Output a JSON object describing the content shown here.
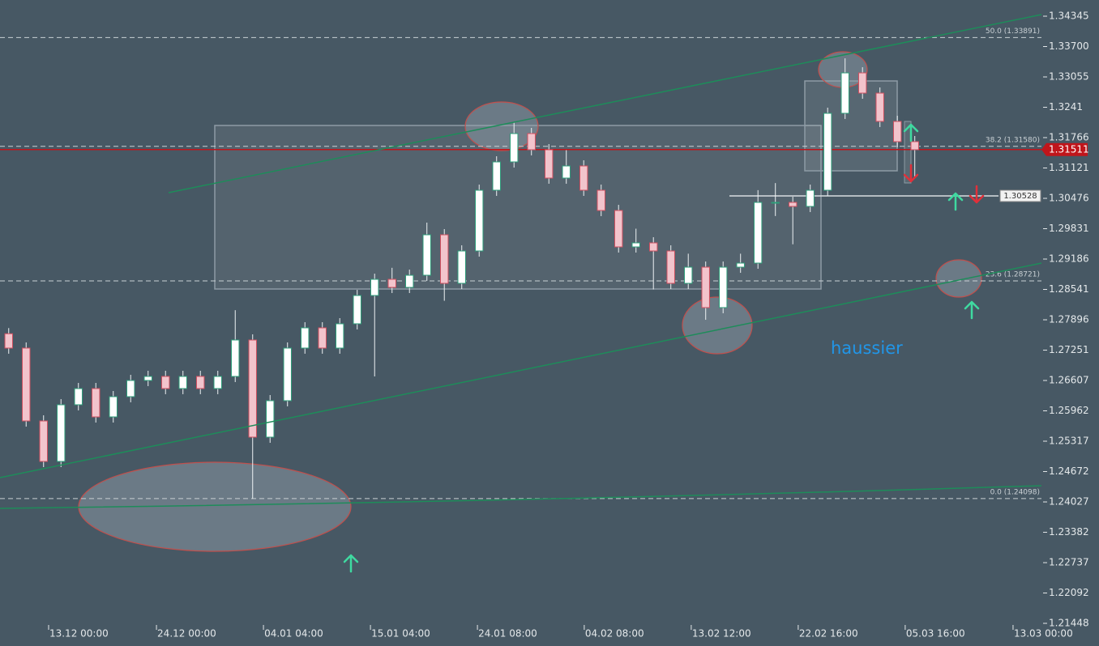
{
  "chart_data": {
    "type": "candlestick",
    "ylim": [
      1.21448,
      1.34689
    ],
    "yticks": [
      1.34345,
      {
        "value": 1.337,
        "label": "1.33700"
      },
      1.33055,
      1.3241,
      1.31766,
      1.31121,
      1.30476,
      1.29831,
      1.29186,
      1.28541,
      1.27896,
      1.27251,
      1.26607,
      1.25962,
      1.25317,
      1.24672,
      1.24027,
      1.23382,
      1.22737,
      1.22092,
      1.21448
    ],
    "xlim": [
      0,
      59.77
    ],
    "xticks": [
      {
        "value": 2.79,
        "label": "13.12 00:00"
      },
      {
        "value": 8.98,
        "label": "24.12 00:00"
      },
      {
        "value": 15.12,
        "label": "04.01 04:00"
      },
      {
        "value": 21.26,
        "label": "15.01 04:00"
      },
      {
        "value": 27.4,
        "label": "24.01 08:00"
      },
      {
        "value": 33.53,
        "label": "04.02 08:00"
      },
      {
        "value": 39.67,
        "label": "13.02 12:00"
      },
      {
        "value": 45.81,
        "label": "22.02 16:00"
      },
      {
        "value": 51.95,
        "label": "05.03 16:00"
      },
      {
        "value": 58.14,
        "label": "13.03 00:00"
      }
    ],
    "candles": {
      "open": [
        1.276,
        1.27295,
        1.25747,
        1.24887,
        1.26091,
        1.26435,
        1.25833,
        1.26263,
        1.26607,
        1.26693,
        1.26435,
        1.26693,
        1.26435,
        1.26693,
        1.27467,
        1.25403,
        1.26177,
        1.27295,
        1.27725,
        1.27295,
        1.27811,
        1.28412,
        1.28756,
        1.28584,
        1.28842,
        1.29702,
        1.2867,
        1.29358,
        1.30648,
        1.3125,
        1.31852,
        1.31508,
        1.30906,
        1.31164,
        1.30648,
        1.30218,
        1.29444,
        1.2953,
        1.29358,
        1.2867,
        1.29014,
        1.28155,
        1.29014,
        1.291,
        1.3039,
        1.3039,
        1.30304,
        1.30648,
        1.32282,
        1.33141,
        1.32711,
        1.3211,
        1.3168
      ],
      "high": [
        1.2772,
        1.27415,
        1.25867,
        1.26211,
        1.26555,
        1.26555,
        1.26383,
        1.26727,
        1.26813,
        1.26813,
        1.26813,
        1.26813,
        1.26813,
        1.281,
        1.27587,
        1.26297,
        1.27415,
        1.27845,
        1.27845,
        1.27931,
        1.28532,
        1.28876,
        1.29,
        1.28962,
        1.2996,
        1.29822,
        1.29478,
        1.30768,
        1.3137,
        1.321,
        1.31972,
        1.31628,
        1.315,
        1.31284,
        1.30768,
        1.30338,
        1.29831,
        1.2965,
        1.29478,
        1.293,
        1.29134,
        1.29134,
        1.293,
        1.3065,
        1.308,
        1.3051,
        1.30768,
        1.32402,
        1.3345,
        1.33261,
        1.32831,
        1.3223,
        1.318
      ],
      "low": [
        1.27175,
        1.25627,
        1.24767,
        1.24767,
        1.25971,
        1.25713,
        1.25713,
        1.26143,
        1.26487,
        1.26315,
        1.26315,
        1.26315,
        1.26315,
        1.26573,
        1.24098,
        1.25283,
        1.26057,
        1.27175,
        1.27175,
        1.27175,
        1.27691,
        1.26693,
        1.28464,
        1.28464,
        1.28722,
        1.283,
        1.2855,
        1.29238,
        1.30528,
        1.3113,
        1.31388,
        1.30786,
        1.30786,
        1.30528,
        1.30098,
        1.29324,
        1.29324,
        1.28541,
        1.2855,
        1.2855,
        1.27896,
        1.28035,
        1.28894,
        1.2898,
        1.301,
        1.295,
        1.30184,
        1.30528,
        1.32162,
        1.32591,
        1.3199,
        1.3156,
        1.309
      ],
      "close": [
        1.27295,
        1.25747,
        1.24887,
        1.26091,
        1.26435,
        1.25833,
        1.26263,
        1.26607,
        1.26693,
        1.26435,
        1.26693,
        1.26435,
        1.26693,
        1.27467,
        1.25403,
        1.26177,
        1.27295,
        1.27725,
        1.27295,
        1.27811,
        1.28412,
        1.28756,
        1.28584,
        1.28842,
        1.29702,
        1.2867,
        1.29358,
        1.30648,
        1.3125,
        1.31852,
        1.31508,
        1.30906,
        1.31164,
        1.30648,
        1.30218,
        1.29444,
        1.2953,
        1.29358,
        1.2867,
        1.29014,
        1.28155,
        1.29014,
        1.291,
        1.3039,
        1.3039,
        1.30304,
        1.30648,
        1.32282,
        1.33141,
        1.32711,
        1.3211,
        1.3168,
        1.31508
      ]
    },
    "up_color": "#ffffff",
    "down_color": "#f2c4cc",
    "up_stroke": "#2e9e7a",
    "down_stroke": "#d05060",
    "levels": [
      {
        "label": "50.0 (1.33891)",
        "value": 1.33891
      },
      {
        "label": "38.2 (1.31580)",
        "value": 1.3158
      },
      {
        "label": "23.6 (1.28721)",
        "value": 1.28721
      },
      {
        "label": "0.0 (1.24098)",
        "value": 1.24098
      }
    ],
    "price_line": {
      "value": 1.31511,
      "color": "#c0151b"
    },
    "level_line": {
      "value": 1.30528
    },
    "annotation": "haussier"
  }
}
